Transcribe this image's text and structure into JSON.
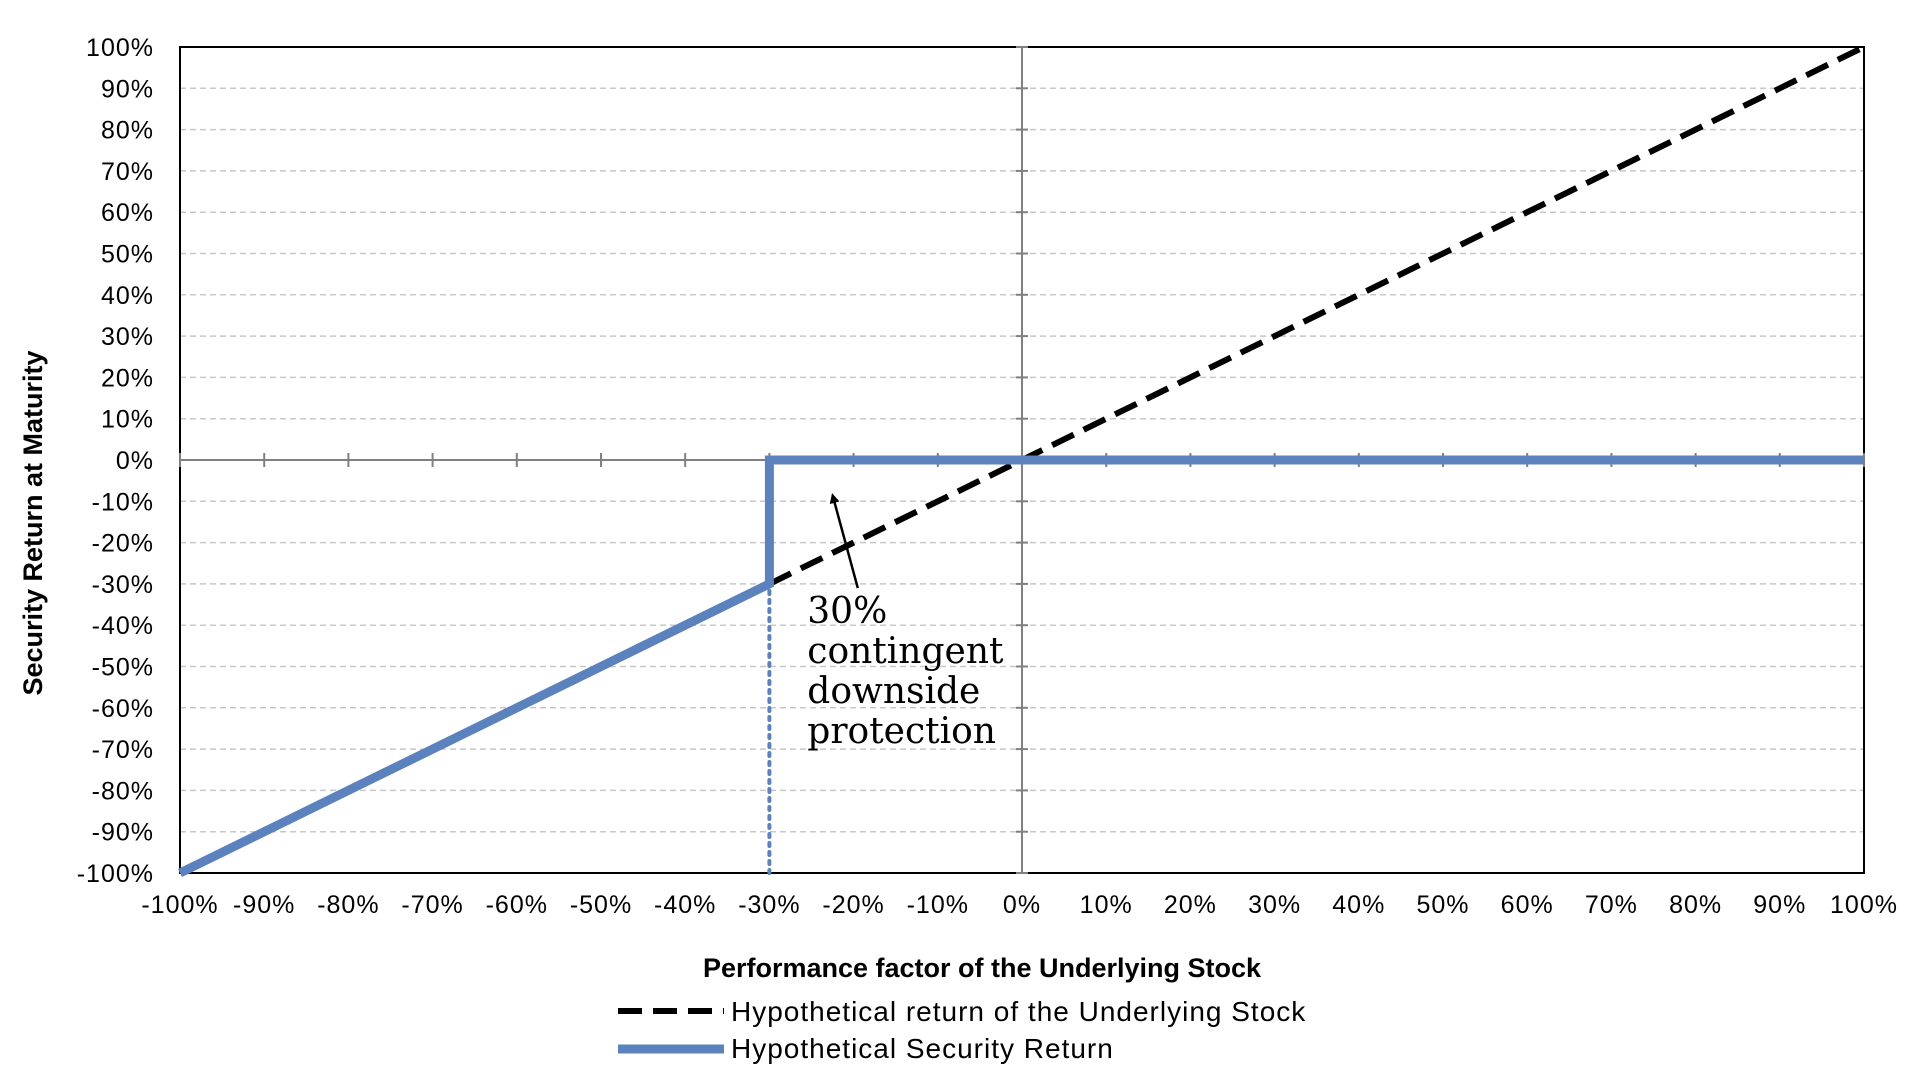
{
  "chart_data": {
    "type": "line",
    "xlabel": "Performance factor of the Underlying Stock",
    "ylabel": "Security Return at Maturity",
    "xlim": [
      -100,
      100
    ],
    "ylim": [
      -100,
      100
    ],
    "x_ticks": [
      -100,
      -90,
      -80,
      -70,
      -60,
      -50,
      -40,
      -30,
      -20,
      -10,
      0,
      10,
      20,
      30,
      40,
      50,
      60,
      70,
      80,
      90,
      100
    ],
    "y_ticks": [
      -100,
      -90,
      -80,
      -70,
      -60,
      -50,
      -40,
      -30,
      -20,
      -10,
      0,
      10,
      20,
      30,
      40,
      50,
      60,
      70,
      80,
      90,
      100
    ],
    "tick_format": "percent",
    "grid": "horizontal-dashed",
    "legend_position": "bottom",
    "series": [
      {
        "name": "Hypothetical return of the Underlying Stock",
        "style": "dashed",
        "color": "#000000",
        "points": [
          [
            -30,
            -30
          ],
          [
            100,
            100
          ]
        ]
      },
      {
        "name": "Hypothetical Security Return",
        "style": "solid",
        "color": "#5b82bd",
        "points": [
          [
            -100,
            -100
          ],
          [
            -30,
            -30
          ],
          [
            -30,
            0
          ],
          [
            100,
            0
          ]
        ]
      }
    ],
    "reference_lines": [
      {
        "type": "vertical-dotted",
        "x": -30,
        "y_from": -100,
        "y_to": -30,
        "color": "#5b82bd"
      }
    ],
    "annotations": [
      {
        "text_lines": [
          "30%",
          "contingent",
          "downside",
          "protection"
        ],
        "arrow_from": [
          -19.5,
          -31
        ],
        "arrow_to": [
          -22.5,
          -8.5
        ]
      }
    ]
  },
  "colors": {
    "security_line": "#5b82bd",
    "stock_line": "#000000",
    "grid": "#c8c8c8",
    "axis": "#808080"
  }
}
